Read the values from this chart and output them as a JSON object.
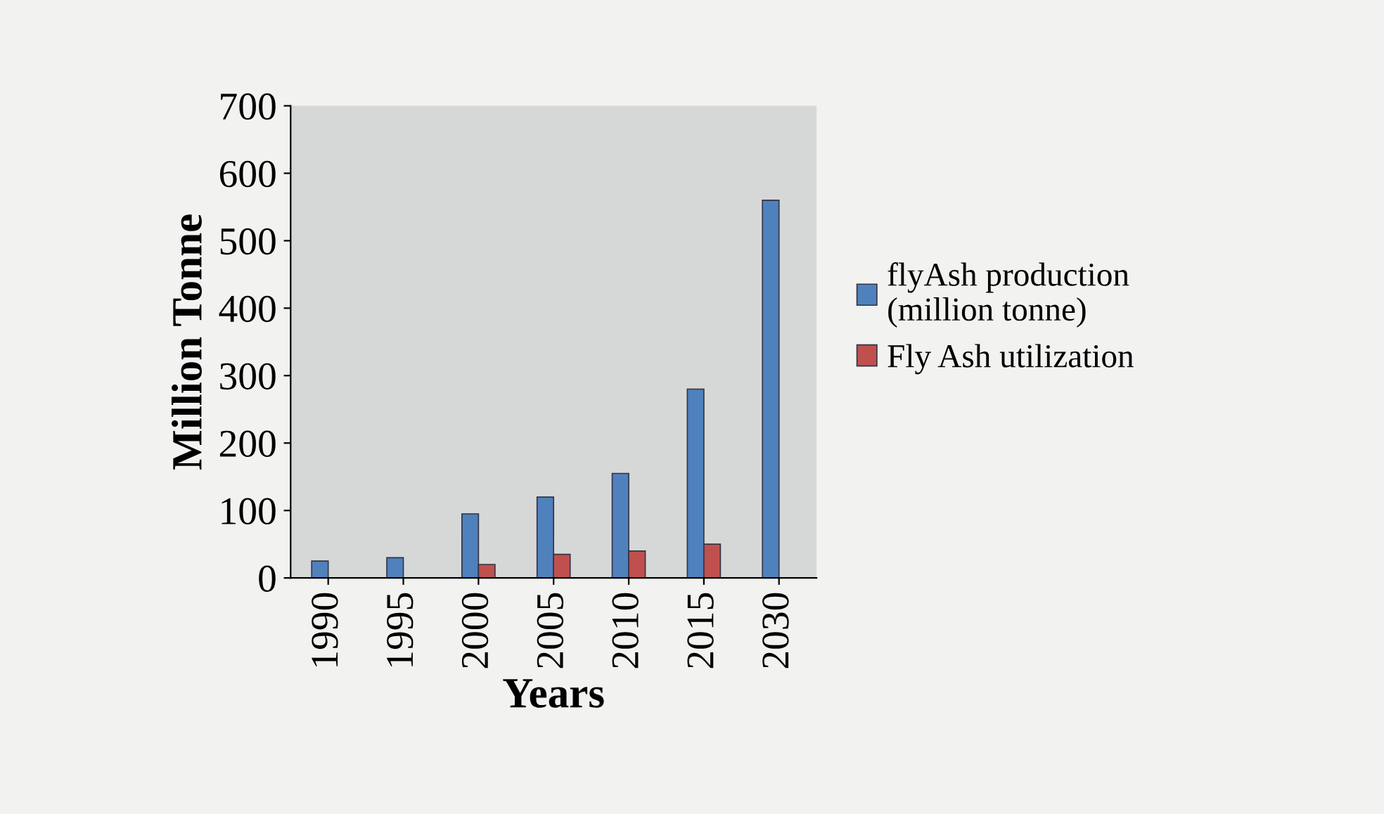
{
  "chart_data": {
    "type": "bar",
    "xlabel": "Years",
    "ylabel": "Million Tonne",
    "categories": [
      "1990",
      "1995",
      "2000",
      "2005",
      "2010",
      "2015",
      "2030"
    ],
    "series": [
      {
        "name": "flyAsh production\n(million tonne)",
        "color": "#4f81bd",
        "values": [
          25,
          30,
          95,
          120,
          155,
          280,
          560
        ]
      },
      {
        "name": "Fly Ash utilization",
        "color": "#c0504d",
        "values": [
          null,
          null,
          20,
          35,
          40,
          50,
          null
        ]
      }
    ],
    "ylim": [
      0,
      700
    ],
    "yticks": [
      0,
      100,
      200,
      300,
      400,
      500,
      600,
      700
    ],
    "grid": false,
    "legend": "right"
  }
}
